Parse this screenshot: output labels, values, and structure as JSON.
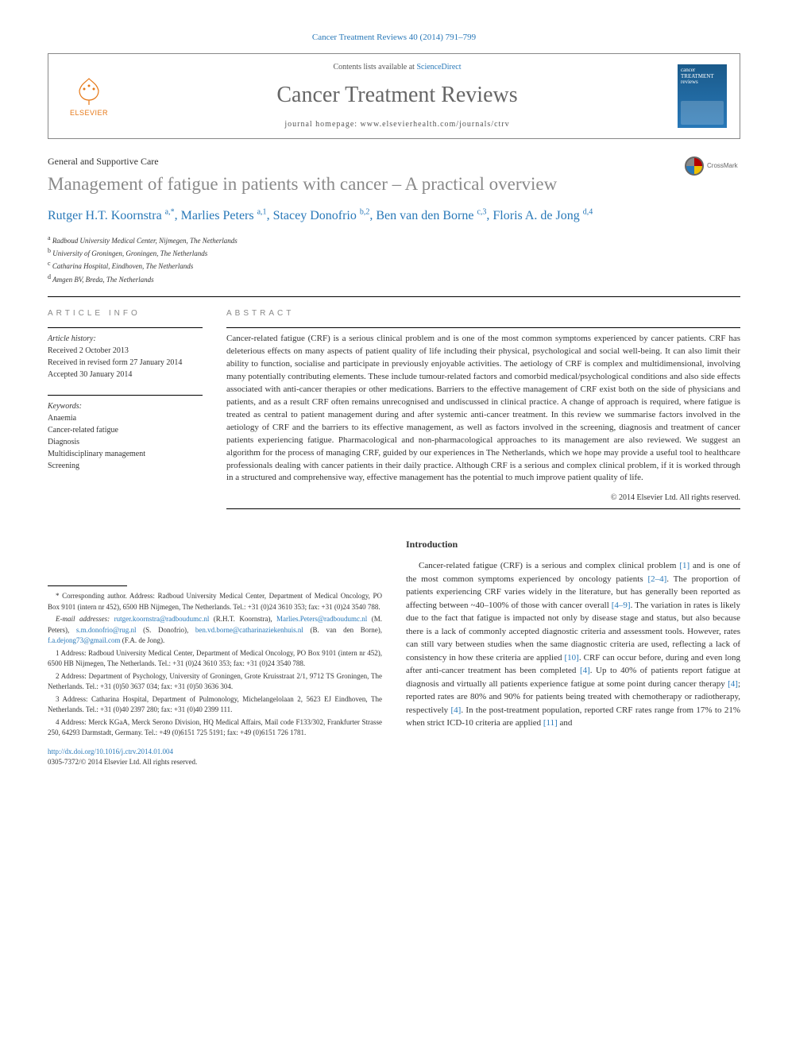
{
  "citation": "Cancer Treatment Reviews 40 (2014) 791–799",
  "header": {
    "publisher": "ELSEVIER",
    "contents_prefix": "Contents lists available at ",
    "contents_link": "ScienceDirect",
    "journal_name": "Cancer Treatment Reviews",
    "homepage_prefix": "journal homepage: ",
    "homepage_url": "www.elsevierhealth.com/journals/ctrv",
    "cover_title": "cancer TREATMENT reviews"
  },
  "crossmark_label": "CrossMark",
  "article": {
    "type": "General and Supportive Care",
    "title": "Management of fatigue in patients with cancer – A practical overview",
    "authors": [
      {
        "name": "Rutger H.T. Koornstra",
        "marks": "a,*"
      },
      {
        "name": "Marlies Peters",
        "marks": "a,1"
      },
      {
        "name": "Stacey Donofrio",
        "marks": "b,2"
      },
      {
        "name": "Ben van den Borne",
        "marks": "c,3"
      },
      {
        "name": "Floris A. de Jong",
        "marks": "d,4"
      }
    ],
    "affiliations": [
      {
        "mark": "a",
        "text": "Radboud University Medical Center, Nijmegen, The Netherlands"
      },
      {
        "mark": "b",
        "text": "University of Groningen, Groningen, The Netherlands"
      },
      {
        "mark": "c",
        "text": "Catharina Hospital, Eindhoven, The Netherlands"
      },
      {
        "mark": "d",
        "text": "Amgen BV, Breda, The Netherlands"
      }
    ]
  },
  "info": {
    "heading": "ARTICLE INFO",
    "history_label": "Article history:",
    "history": [
      "Received 2 October 2013",
      "Received in revised form 27 January 2014",
      "Accepted 30 January 2014"
    ],
    "keywords_label": "Keywords:",
    "keywords": [
      "Anaemia",
      "Cancer-related fatigue",
      "Diagnosis",
      "Multidisciplinary management",
      "Screening"
    ]
  },
  "abstract": {
    "heading": "ABSTRACT",
    "text": "Cancer-related fatigue (CRF) is a serious clinical problem and is one of the most common symptoms experienced by cancer patients. CRF has deleterious effects on many aspects of patient quality of life including their physical, psychological and social well-being. It can also limit their ability to function, socialise and participate in previously enjoyable activities. The aetiology of CRF is complex and multidimensional, involving many potentially contributing elements. These include tumour-related factors and comorbid medical/psychological conditions and also side effects associated with anti-cancer therapies or other medications. Barriers to the effective management of CRF exist both on the side of physicians and patients, and as a result CRF often remains unrecognised and undiscussed in clinical practice. A change of approach is required, where fatigue is treated as central to patient management during and after systemic anti-cancer treatment. In this review we summarise factors involved in the aetiology of CRF and the barriers to its effective management, as well as factors involved in the screening, diagnosis and treatment of cancer patients experiencing fatigue. Pharmacological and non-pharmacological approaches to its management are also reviewed. We suggest an algorithm for the process of managing CRF, guided by our experiences in The Netherlands, which we hope may provide a useful tool to healthcare professionals dealing with cancer patients in their daily practice. Although CRF is a serious and complex clinical problem, if it is worked through in a structured and comprehensive way, effective management has the potential to much improve patient quality of life.",
    "copyright": "© 2014 Elsevier Ltd. All rights reserved."
  },
  "footnotes": {
    "corresponding": "* Corresponding author. Address: Radboud University Medical Center, Department of Medical Oncology, PO Box 9101 (intern nr 452), 6500 HB Nijmegen, The Netherlands. Tel.: +31 (0)24 3610 353; fax: +31 (0)24 3540 788.",
    "emails_label": "E-mail addresses: ",
    "emails": [
      {
        "addr": "rutger.koornstra@radboudumc.nl",
        "who": " (R.H.T. Koornstra), "
      },
      {
        "addr": "Marlies.Peters@radboudumc.nl",
        "who": " (M. Peters), "
      },
      {
        "addr": "s.m.donofrio@rug.nl",
        "who": " (S. Donofrio), "
      },
      {
        "addr": "ben.vd.borne@catharinaziekenhuis.nl",
        "who": " (B. van den Borne), "
      },
      {
        "addr": "f.a.dejong73@gmail.com",
        "who": " (F.A. de Jong)."
      }
    ],
    "addresses": [
      "1 Address: Radboud University Medical Center, Department of Medical Oncology, PO Box 9101 (intern nr 452), 6500 HB Nijmegen, The Netherlands. Tel.: +31 (0)24 3610 353; fax: +31 (0)24 3540 788.",
      "2 Address: Department of Psychology, University of Groningen, Grote Kruisstraat 2/1, 9712 TS Groningen, The Netherlands. Tel.: +31 (0)50 3637 034; fax: +31 (0)50 3636 304.",
      "3 Address: Catharina Hospital, Department of Pulmonology, Michelangelolaan 2, 5623 EJ Eindhoven, The Netherlands. Tel.: +31 (0)40 2397 280; fax: +31 (0)40 2399 111.",
      "4 Address: Merck KGaA, Merck Serono Division, HQ Medical Affairs, Mail code F133/302, Frankfurter Strasse 250, 64293 Darmstadt, Germany. Tel.: +49 (0)6151 725 5191; fax: +49 (0)6151 726 1781."
    ],
    "doi_url": "http://dx.doi.org/10.1016/j.ctrv.2014.01.004",
    "issn_copy": "0305-7372/© 2014 Elsevier Ltd. All rights reserved."
  },
  "intro": {
    "heading": "Introduction",
    "para": "Cancer-related fatigue (CRF) is a serious and complex clinical problem [1] and is one of the most common symptoms experienced by oncology patients [2–4]. The proportion of patients experiencing CRF varies widely in the literature, but has generally been reported as affecting between ~40–100% of those with cancer overall [4–9]. The variation in rates is likely due to the fact that fatigue is impacted not only by disease stage and status, but also because there is a lack of commonly accepted diagnostic criteria and assessment tools. However, rates can still vary between studies when the same diagnostic criteria are used, reflecting a lack of consistency in how these criteria are applied [10]. CRF can occur before, during and even long after anti-cancer treatment has been completed [4]. Up to 40% of patients report fatigue at diagnosis and virtually all patients experience fatigue at some point during cancer therapy [4]; reported rates are 80% and 90% for patients being treated with chemotherapy or radiotherapy, respectively [4]. In the post-treatment population, reported CRF rates range from 17% to 21% when strict ICD-10 criteria are applied [11] and",
    "refs": [
      "[1]",
      "[2–4]",
      "[4–9]",
      "[10]",
      "[4]",
      "[4]",
      "[4]",
      "[11]"
    ]
  },
  "colors": {
    "link": "#2878b8",
    "orange": "#e67817",
    "title_grey": "#8a8a8a"
  }
}
